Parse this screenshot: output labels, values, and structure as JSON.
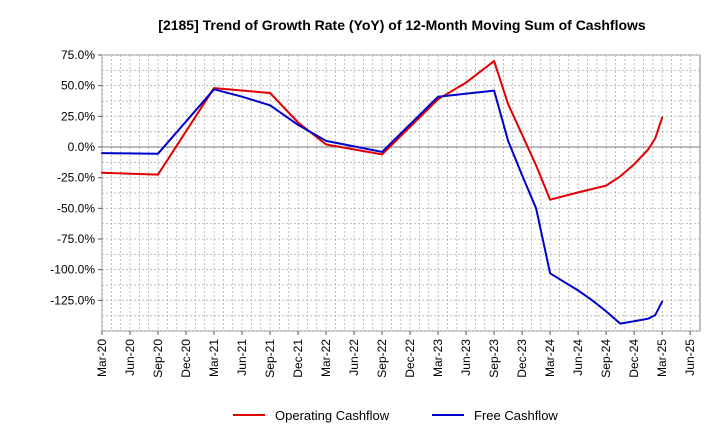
{
  "chart_data": {
    "type": "line",
    "title": "[2185]  Trend of Growth Rate (YoY) of 12-Month Moving Sum of Cashflows",
    "xlabel": "",
    "ylabel": "",
    "ylim": [
      -150,
      75
    ],
    "y_ticks": [
      75,
      50,
      25,
      0,
      -25,
      -50,
      -75,
      -100,
      -125
    ],
    "y_tick_labels": [
      "75.0%",
      "50.0%",
      "25.0%",
      "0.0%",
      "-25.0%",
      "-50.0%",
      "-75.0%",
      "-100.0%",
      "-125.0%"
    ],
    "x_tick_labels": [
      "Mar-20",
      "Jun-20",
      "Sep-20",
      "Dec-20",
      "Mar-21",
      "Jun-21",
      "Sep-21",
      "Dec-21",
      "Mar-22",
      "Jun-22",
      "Sep-22",
      "Dec-22",
      "Mar-23",
      "Jun-23",
      "Sep-23",
      "Dec-23",
      "Mar-24",
      "Jun-24",
      "Sep-24",
      "Dec-24",
      "Mar-25",
      "Jun-25"
    ],
    "grid": true,
    "legend_position": "bottom-center",
    "series": [
      {
        "name": "Operating Cashflow",
        "color": "#e00000",
        "points": [
          [
            0,
            -21
          ],
          [
            2,
            -22.5
          ],
          [
            4,
            48
          ],
          [
            6,
            44
          ],
          [
            7,
            20
          ],
          [
            8,
            2
          ],
          [
            10,
            -6
          ],
          [
            12,
            39
          ],
          [
            13,
            52.5
          ],
          [
            14,
            70
          ],
          [
            14.5,
            35
          ],
          [
            15,
            10
          ],
          [
            15.5,
            -15
          ],
          [
            16,
            -43
          ],
          [
            17,
            -37
          ],
          [
            18,
            -31.5
          ],
          [
            18.5,
            -24
          ],
          [
            19,
            -14
          ],
          [
            19.5,
            -2
          ],
          [
            19.75,
            7
          ],
          [
            20,
            24
          ]
        ]
      },
      {
        "name": "Free Cashflow",
        "color": "#0000cc",
        "points": [
          [
            0,
            -5
          ],
          [
            2,
            -5.5
          ],
          [
            4,
            47
          ],
          [
            5,
            41
          ],
          [
            6,
            34
          ],
          [
            7,
            18
          ],
          [
            8,
            5
          ],
          [
            10,
            -4
          ],
          [
            12,
            41
          ],
          [
            14,
            46
          ],
          [
            14.5,
            5
          ],
          [
            15,
            -23
          ],
          [
            15.5,
            -50
          ],
          [
            16,
            -103
          ],
          [
            17,
            -117
          ],
          [
            17.5,
            -125
          ],
          [
            18,
            -134
          ],
          [
            18.5,
            -144
          ],
          [
            19,
            -142
          ],
          [
            19.5,
            -140
          ],
          [
            19.75,
            -137
          ],
          [
            20,
            -126
          ]
        ]
      }
    ]
  }
}
